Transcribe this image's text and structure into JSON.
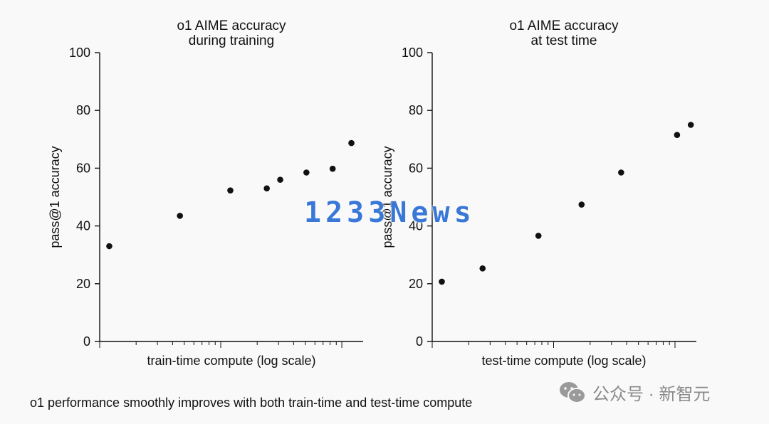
{
  "caption": "o1 performance smoothly improves with both train-time and test-time compute",
  "watermark": "1233News",
  "wechat": {
    "icon": "wechat-icon",
    "text": "公众号 · 新智元",
    "color": "#8a8a8a"
  },
  "colors": {
    "points": "#111111",
    "axis": "#111111",
    "background": "#f9f9f9",
    "watermark": "#3a78d8"
  },
  "chart_data": [
    {
      "type": "scatter",
      "title": [
        "o1 AIME accuracy",
        "during training"
      ],
      "xlabel": "train-time compute (log scale)",
      "ylabel": "pass@1 accuracy",
      "xscale": "log",
      "xlim": [
        1,
        150
      ],
      "ylim": [
        0,
        100
      ],
      "yticks": [
        0,
        20,
        40,
        60,
        80,
        100
      ],
      "x_tick_labels": "none",
      "grid": false,
      "points": [
        {
          "x": 1.2,
          "y": 33
        },
        {
          "x": 4.6,
          "y": 43.5
        },
        {
          "x": 12,
          "y": 52.3
        },
        {
          "x": 24,
          "y": 53
        },
        {
          "x": 31,
          "y": 56
        },
        {
          "x": 51,
          "y": 58.5
        },
        {
          "x": 84,
          "y": 59.8
        },
        {
          "x": 120,
          "y": 68.7
        }
      ]
    },
    {
      "type": "scatter",
      "title": [
        "o1 AIME accuracy",
        "at test time"
      ],
      "xlabel": "test-time compute (log scale)",
      "ylabel": "pass@1 accuracy",
      "xscale": "log",
      "xlim": [
        1,
        150
      ],
      "ylim": [
        0,
        100
      ],
      "yticks": [
        0,
        20,
        40,
        60,
        80,
        100
      ],
      "x_tick_labels": "none",
      "grid": false,
      "points": [
        {
          "x": 1.2,
          "y": 20.7
        },
        {
          "x": 2.6,
          "y": 25.3
        },
        {
          "x": 7.5,
          "y": 36.6
        },
        {
          "x": 17,
          "y": 47.4
        },
        {
          "x": 36,
          "y": 58.5
        },
        {
          "x": 104,
          "y": 71.5
        },
        {
          "x": 135,
          "y": 75
        }
      ]
    }
  ]
}
